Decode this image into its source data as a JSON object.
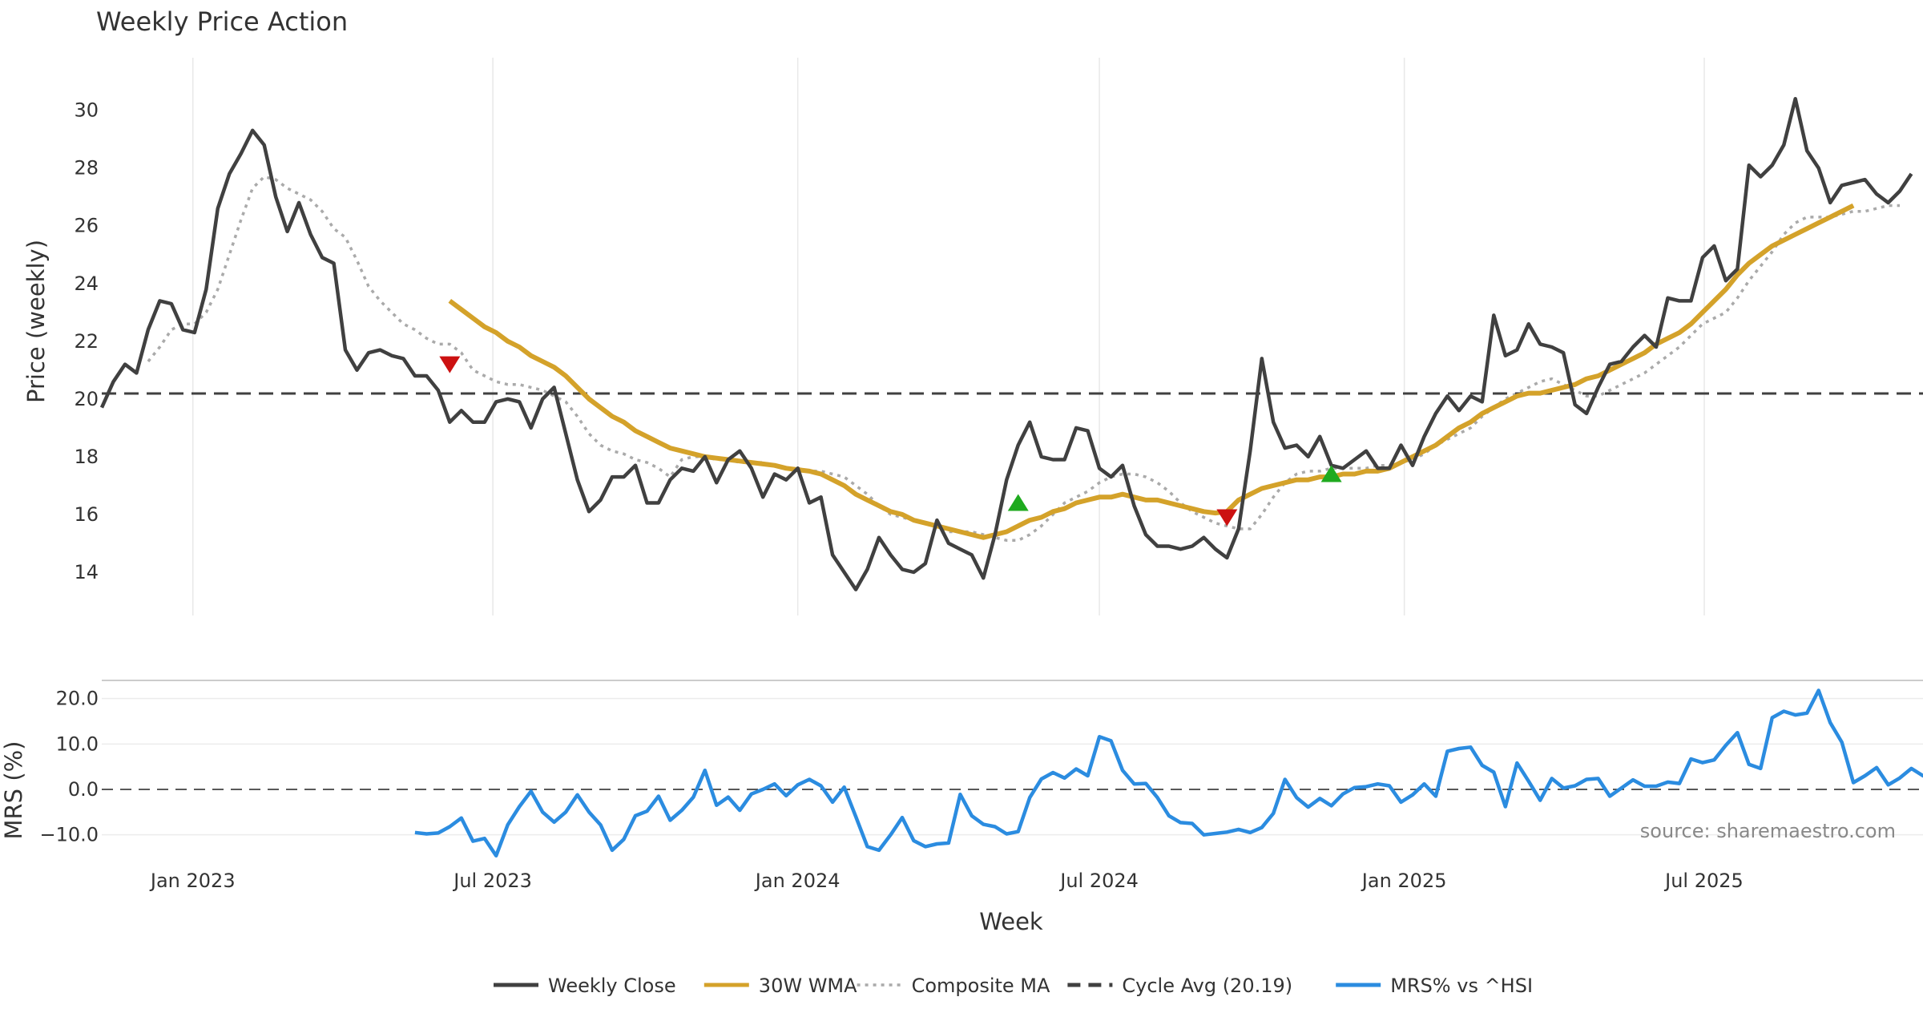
{
  "chart_data": {
    "type": "line",
    "title": "Weekly Price Action",
    "xlabel": "Week",
    "source": "source: sharemaestro.com",
    "x_ticks": [
      "Jan 2023",
      "Jul 2023",
      "Jan 2024",
      "Jul 2024",
      "Jan 2025",
      "Jul 2025"
    ],
    "x_range": [
      "2022-11-07",
      "2025-11-10"
    ],
    "price_panel": {
      "ylabel": "Price (weekly)",
      "ylim": [
        12.5,
        31.6
      ],
      "yticks": [
        14,
        16,
        18,
        20,
        22,
        24,
        26,
        28,
        30
      ],
      "grid": "vertical"
    },
    "mrs_panel": {
      "ylabel": "MRS (%)",
      "ylim": [
        -15,
        24
      ],
      "yticks": [
        "20.0",
        "10.0",
        "0.0",
        "−10.0"
      ],
      "zero_line": 0
    },
    "legend": {
      "placement": "bottom-center",
      "items": [
        {
          "label": "Weekly Close",
          "color": "#404040",
          "style": "solid"
        },
        {
          "label": "30W WMA",
          "color": "#d4a22a",
          "style": "solid"
        },
        {
          "label": "Composite MA",
          "color": "#aaaaaa",
          "style": "dotted"
        },
        {
          "label": "Cycle Avg (20.19)",
          "color": "#404040",
          "style": "dashed"
        },
        {
          "label": "MRS% vs ^HSI",
          "color": "#2b8ce0",
          "style": "solid"
        }
      ]
    },
    "cycle_avg": 20.19,
    "colors": {
      "close": "#404040",
      "wma": "#d4a22a",
      "composite": "#aaaaaa",
      "mrs": "#2b8ce0",
      "buy": "#1faa1f",
      "sell": "#cc1111"
    },
    "series": [
      {
        "name": "Weekly Close",
        "start": "2022-11-07",
        "values": [
          19.7,
          20.6,
          21.2,
          20.9,
          22.4,
          23.4,
          23.3,
          22.4,
          22.3,
          23.8,
          26.6,
          27.8,
          28.5,
          29.3,
          28.8,
          27.0,
          25.8,
          26.8,
          25.7,
          24.9,
          24.7,
          21.7,
          21.0,
          21.6,
          21.7,
          21.5,
          21.4,
          20.8,
          20.8,
          20.3,
          19.2,
          19.6,
          19.2,
          19.2,
          19.9,
          20.0,
          19.9,
          19.0,
          20.0,
          20.4,
          18.8,
          17.2,
          16.1,
          16.5,
          17.3,
          17.3,
          17.7,
          16.4,
          16.4,
          17.2,
          17.6,
          17.5,
          18.0,
          17.1,
          17.9,
          18.2,
          17.6,
          16.6,
          17.4,
          17.2,
          17.6,
          16.4,
          16.6,
          14.6,
          14.0,
          13.4,
          14.1,
          15.2,
          14.6,
          14.1,
          14.0,
          14.3,
          15.8,
          15.0,
          14.8,
          14.6,
          13.8,
          15.3,
          17.2,
          18.4,
          19.2,
          18.0,
          17.9,
          17.9,
          19.0,
          18.9,
          17.6,
          17.3,
          17.7,
          16.3,
          15.3,
          14.9,
          14.9,
          14.8,
          14.9,
          15.2,
          14.8,
          14.5,
          15.5,
          18.2,
          21.4,
          19.2,
          18.3,
          18.4,
          18.0,
          18.7,
          17.7,
          17.6,
          17.9,
          18.2,
          17.6,
          17.6,
          18.4,
          17.7,
          18.7,
          19.5,
          20.1,
          19.6,
          20.1,
          19.9,
          22.9,
          21.5,
          21.7,
          22.6,
          21.9,
          21.8,
          21.6,
          19.8,
          19.5,
          20.4,
          21.2,
          21.3,
          21.8,
          22.2,
          21.8,
          23.5,
          23.4,
          23.4,
          24.9,
          25.3,
          24.1,
          24.5,
          28.1,
          27.7,
          28.1,
          28.8,
          30.4,
          28.6,
          28.0,
          26.8,
          27.4,
          27.5,
          27.6,
          27.1,
          26.8,
          27.2,
          27.8
        ]
      },
      {
        "name": "30W WMA",
        "start": "2023-06-05",
        "values": [
          23.4,
          23.1,
          22.8,
          22.5,
          22.3,
          22.0,
          21.8,
          21.5,
          21.3,
          21.1,
          20.8,
          20.4,
          20.0,
          19.7,
          19.4,
          19.2,
          18.9,
          18.7,
          18.5,
          18.3,
          18.2,
          18.1,
          18.0,
          17.95,
          17.9,
          17.85,
          17.8,
          17.75,
          17.7,
          17.6,
          17.55,
          17.5,
          17.4,
          17.2,
          17.0,
          16.7,
          16.5,
          16.3,
          16.1,
          16.0,
          15.8,
          15.7,
          15.6,
          15.5,
          15.4,
          15.3,
          15.2,
          15.3,
          15.4,
          15.6,
          15.8,
          15.9,
          16.1,
          16.2,
          16.4,
          16.5,
          16.6,
          16.6,
          16.7,
          16.6,
          16.5,
          16.5,
          16.4,
          16.3,
          16.2,
          16.1,
          16.05,
          16.1,
          16.5,
          16.7,
          16.9,
          17.0,
          17.1,
          17.2,
          17.2,
          17.3,
          17.3,
          17.4,
          17.4,
          17.5,
          17.5,
          17.6,
          17.8,
          18.0,
          18.2,
          18.4,
          18.7,
          19.0,
          19.2,
          19.5,
          19.7,
          19.9,
          20.1,
          20.2,
          20.2,
          20.3,
          20.4,
          20.5,
          20.7,
          20.8,
          21.0,
          21.2,
          21.4,
          21.6,
          21.9,
          22.1,
          22.3,
          22.6,
          23.0,
          23.4,
          23.8,
          24.3,
          24.7,
          25.0,
          25.3,
          25.5,
          25.7,
          25.9,
          26.1,
          26.3,
          26.5,
          26.7
        ]
      },
      {
        "name": "Composite MA",
        "start": "2022-12-05",
        "values": [
          21.3,
          21.8,
          22.4,
          22.6,
          22.6,
          23.0,
          23.8,
          25.0,
          26.2,
          27.3,
          27.7,
          27.6,
          27.3,
          27.1,
          26.9,
          26.5,
          25.9,
          25.6,
          24.8,
          23.9,
          23.4,
          23.0,
          22.6,
          22.4,
          22.1,
          21.9,
          21.9,
          21.6,
          21.0,
          20.8,
          20.6,
          20.5,
          20.5,
          20.4,
          20.3,
          20.1,
          19.9,
          19.4,
          18.8,
          18.4,
          18.2,
          18.1,
          17.9,
          17.8,
          17.6,
          17.3,
          17.9,
          18.0,
          18.0,
          17.9,
          17.9,
          17.8,
          17.8,
          17.8,
          17.7,
          17.6,
          17.6,
          17.5,
          17.5,
          17.4,
          17.3,
          17.0,
          16.7,
          16.3,
          16.0,
          15.9,
          15.8,
          15.7,
          15.5,
          15.4,
          15.4,
          15.4,
          15.3,
          15.2,
          15.1,
          15.1,
          15.3,
          15.6,
          16.0,
          16.4,
          16.6,
          16.8,
          17.1,
          17.3,
          17.4,
          17.4,
          17.3,
          17.1,
          16.8,
          16.4,
          16.1,
          15.9,
          15.7,
          15.6,
          15.5,
          15.5,
          16.0,
          16.6,
          17.1,
          17.4,
          17.5,
          17.5,
          17.6,
          17.6,
          17.6,
          17.6,
          17.7,
          17.7,
          17.8,
          17.9,
          18.1,
          18.4,
          18.6,
          18.8,
          19.0,
          19.4,
          19.7,
          20.0,
          20.2,
          20.4,
          20.6,
          20.7,
          20.5,
          20.3,
          20.1,
          20.1,
          20.3,
          20.5,
          20.7,
          20.9,
          21.2,
          21.5,
          21.8,
          22.2,
          22.6,
          22.8,
          23.0,
          23.5,
          24.1,
          24.6,
          25.1,
          25.7,
          26.1,
          26.3,
          26.3,
          26.3,
          26.4,
          26.5,
          26.5,
          26.6,
          26.7,
          26.7
        ]
      },
      {
        "name": "MRS% vs ^HSI",
        "start": "2023-05-15",
        "values": [
          -9.5,
          -9.8,
          -9.6,
          -8.2,
          -6.3,
          -11.4,
          -10.8,
          -14.6,
          -7.8,
          -3.8,
          -0.4,
          -5.0,
          -7.2,
          -5.0,
          -1.2,
          -5.0,
          -7.8,
          -13.4,
          -11.0,
          -5.8,
          -4.8,
          -1.5,
          -6.8,
          -4.6,
          -1.7,
          4.2,
          -3.5,
          -1.7,
          -4.6,
          -1.0,
          0.0,
          1.2,
          -1.4,
          1.0,
          2.2,
          0.8,
          -2.8,
          0.5,
          -6.0,
          -12.6,
          -13.4,
          -10.0,
          -6.2,
          -11.3,
          -12.6,
          -12.0,
          -11.8,
          -1.1,
          -5.8,
          -7.7,
          -8.2,
          -9.8,
          -9.3,
          -1.8,
          2.3,
          3.7,
          2.5,
          4.5,
          3.0,
          11.6,
          10.7,
          4.2,
          1.2,
          1.3,
          -1.8,
          -5.8,
          -7.3,
          -7.5,
          -10.0,
          -9.7,
          -9.4,
          -8.8,
          -9.5,
          -8.4,
          -5.3,
          2.2,
          -1.8,
          -3.9,
          -2.0,
          -3.6,
          -1.0,
          0.4,
          0.6,
          1.2,
          0.8,
          -2.8,
          -1.2,
          1.2,
          -1.5,
          8.4,
          9.0,
          9.3,
          5.3,
          3.8,
          -3.8,
          5.8,
          1.8,
          -2.4,
          2.4,
          0.3,
          0.8,
          2.2,
          2.4,
          -1.5,
          0.3,
          2.1,
          0.7,
          0.7,
          1.6,
          1.3,
          6.7,
          5.9,
          6.5,
          9.7,
          12.5,
          5.5,
          4.6,
          15.8,
          17.2,
          16.4,
          16.8,
          21.8,
          14.7,
          10.4,
          1.5,
          3.0,
          4.8,
          1.0,
          2.5,
          4.6,
          3.0,
          3.7
        ]
      }
    ],
    "signals": [
      {
        "type": "sell",
        "date": "2023-06-05",
        "price": 21.2
      },
      {
        "type": "buy",
        "date": "2024-05-13",
        "price": 16.4
      },
      {
        "type": "sell",
        "date": "2024-09-16",
        "price": 15.9
      },
      {
        "type": "buy",
        "date": "2024-11-18",
        "price": 17.4
      }
    ]
  }
}
